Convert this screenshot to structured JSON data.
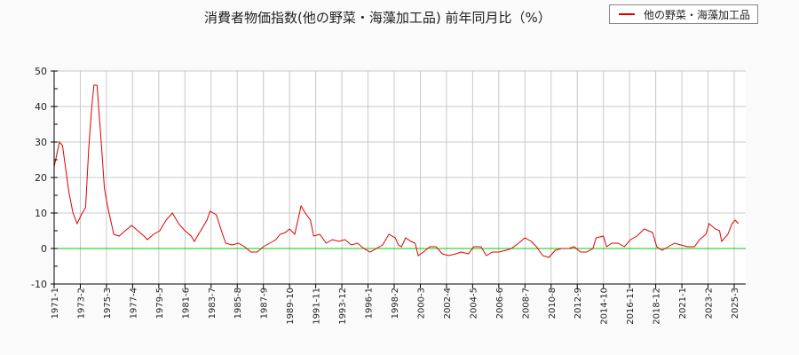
{
  "title": "消費者物価指数(他の野菜・海藻加工品) 前年同月比（%）",
  "legend": {
    "label": "他の野菜・海藻加工品",
    "color": "#dd0000"
  },
  "colors": {
    "series": "#dd0000",
    "zero_line": "#00cc00",
    "grid": "#c8c8c8",
    "background": "#fafafa",
    "plot_bg": "#ffffff"
  },
  "chart_data": {
    "type": "line",
    "title": "消費者物価指数(他の野菜・海藻加工品) 前年同月比（%）",
    "xlabel": "",
    "ylabel": "",
    "ylim": [
      -10,
      50
    ],
    "yticks": [
      -10,
      0,
      10,
      20,
      30,
      40,
      50
    ],
    "grid": true,
    "legend_position": "top-right",
    "x_tick_labels": [
      "1971-1",
      "1973-2",
      "1975-3",
      "1977-4",
      "1979-5",
      "1981-6",
      "1983-7",
      "1985-8",
      "1987-9",
      "1989-10",
      "1991-11",
      "1993-12",
      "1996-1",
      "1998-2",
      "2000-3",
      "2002-4",
      "2004-5",
      "2006-6",
      "2008-7",
      "2010-8",
      "2012-9",
      "2014-10",
      "2016-11",
      "2018-12",
      "2021-1",
      "2023-2",
      "2025-3"
    ],
    "series": [
      {
        "name": "他の野菜・海藻加工品",
        "points": [
          [
            "1971-1",
            23
          ],
          [
            "1971-6",
            30
          ],
          [
            "1971-9",
            29
          ],
          [
            "1972-3",
            16
          ],
          [
            "1972-7",
            10
          ],
          [
            "1972-11",
            7
          ],
          [
            "1973-3",
            9.5
          ],
          [
            "1973-7",
            11.5
          ],
          [
            "1973-10",
            28
          ],
          [
            "1974-1",
            40
          ],
          [
            "1974-3",
            46
          ],
          [
            "1974-6",
            46
          ],
          [
            "1974-10",
            30
          ],
          [
            "1975-1",
            17
          ],
          [
            "1975-4",
            12
          ],
          [
            "1975-7",
            8
          ],
          [
            "1975-10",
            4
          ],
          [
            "1976-3",
            3.5
          ],
          [
            "1976-9",
            5
          ],
          [
            "1977-3",
            6.5
          ],
          [
            "1977-9",
            5
          ],
          [
            "1978-3",
            3.5
          ],
          [
            "1978-6",
            2.5
          ],
          [
            "1978-12",
            4
          ],
          [
            "1979-6",
            5
          ],
          [
            "1979-12",
            8
          ],
          [
            "1980-6",
            10
          ],
          [
            "1980-12",
            7
          ],
          [
            "1981-6",
            5
          ],
          [
            "1981-12",
            3.5
          ],
          [
            "1982-3",
            2
          ],
          [
            "1982-9",
            5
          ],
          [
            "1983-3",
            8
          ],
          [
            "1983-6",
            10.5
          ],
          [
            "1983-12",
            9.5
          ],
          [
            "1984-6",
            4
          ],
          [
            "1984-9",
            1.5
          ],
          [
            "1985-3",
            1
          ],
          [
            "1985-9",
            1.5
          ],
          [
            "1986-3",
            0.5
          ],
          [
            "1986-9",
            -1
          ],
          [
            "1987-3",
            -1
          ],
          [
            "1987-9",
            0.5
          ],
          [
            "1988-3",
            1.5
          ],
          [
            "1988-9",
            2.5
          ],
          [
            "1989-1",
            4
          ],
          [
            "1989-6",
            4.5
          ],
          [
            "1989-10",
            5.5
          ],
          [
            "1990-3",
            4
          ],
          [
            "1990-6",
            8
          ],
          [
            "1990-9",
            12
          ],
          [
            "1991-1",
            10
          ],
          [
            "1991-6",
            8
          ],
          [
            "1991-9",
            3.5
          ],
          [
            "1992-3",
            4
          ],
          [
            "1992-9",
            1.5
          ],
          [
            "1993-3",
            2.5
          ],
          [
            "1993-9",
            2
          ],
          [
            "1994-3",
            2.5
          ],
          [
            "1994-9",
            1
          ],
          [
            "1995-3",
            1.5
          ],
          [
            "1995-9",
            0
          ],
          [
            "1996-3",
            -1
          ],
          [
            "1996-9",
            0
          ],
          [
            "1997-3",
            1
          ],
          [
            "1997-9",
            4
          ],
          [
            "1998-3",
            3
          ],
          [
            "1998-6",
            1
          ],
          [
            "1998-9",
            0.5
          ],
          [
            "1999-1",
            3
          ],
          [
            "1999-6",
            2
          ],
          [
            "1999-10",
            1.5
          ],
          [
            "2000-1",
            -2
          ],
          [
            "2000-6",
            -1
          ],
          [
            "2000-12",
            0.5
          ],
          [
            "2001-6",
            0.5
          ],
          [
            "2001-12",
            -1.5
          ],
          [
            "2002-6",
            -2
          ],
          [
            "2003-1",
            -1.5
          ],
          [
            "2003-6",
            -1
          ],
          [
            "2004-1",
            -1.5
          ],
          [
            "2004-6",
            0.5
          ],
          [
            "2005-1",
            0.5
          ],
          [
            "2005-6",
            -2
          ],
          [
            "2005-12",
            -1
          ],
          [
            "2006-6",
            -1
          ],
          [
            "2007-1",
            -0.5
          ],
          [
            "2007-6",
            0
          ],
          [
            "2008-1",
            1.5
          ],
          [
            "2008-7",
            3
          ],
          [
            "2009-1",
            2
          ],
          [
            "2009-6",
            0.5
          ],
          [
            "2009-12",
            -2
          ],
          [
            "2010-6",
            -2.5
          ],
          [
            "2010-12",
            -0.5
          ],
          [
            "2011-6",
            0
          ],
          [
            "2012-1",
            0
          ],
          [
            "2012-6",
            0.5
          ],
          [
            "2012-12",
            -1
          ],
          [
            "2013-6",
            -1
          ],
          [
            "2013-12",
            0
          ],
          [
            "2014-3",
            3
          ],
          [
            "2014-10",
            3.5
          ],
          [
            "2015-1",
            0.5
          ],
          [
            "2015-6",
            1.5
          ],
          [
            "2015-12",
            1.5
          ],
          [
            "2016-6",
            0.5
          ],
          [
            "2016-12",
            2.5
          ],
          [
            "2017-6",
            3.5
          ],
          [
            "2018-1",
            5.5
          ],
          [
            "2018-9",
            4.5
          ],
          [
            "2019-1",
            0.5
          ],
          [
            "2019-6",
            -0.5
          ],
          [
            "2019-12",
            0.5
          ],
          [
            "2020-6",
            1.5
          ],
          [
            "2020-12",
            1
          ],
          [
            "2021-6",
            0.5
          ],
          [
            "2022-1",
            0.5
          ],
          [
            "2022-6",
            2.5
          ],
          [
            "2022-12",
            4
          ],
          [
            "2023-3",
            7
          ],
          [
            "2023-9",
            5.5
          ],
          [
            "2024-1",
            5
          ],
          [
            "2024-3",
            2
          ],
          [
            "2024-9",
            4
          ],
          [
            "2025-1",
            7
          ],
          [
            "2025-4",
            8
          ],
          [
            "2025-7",
            7
          ]
        ]
      }
    ]
  }
}
